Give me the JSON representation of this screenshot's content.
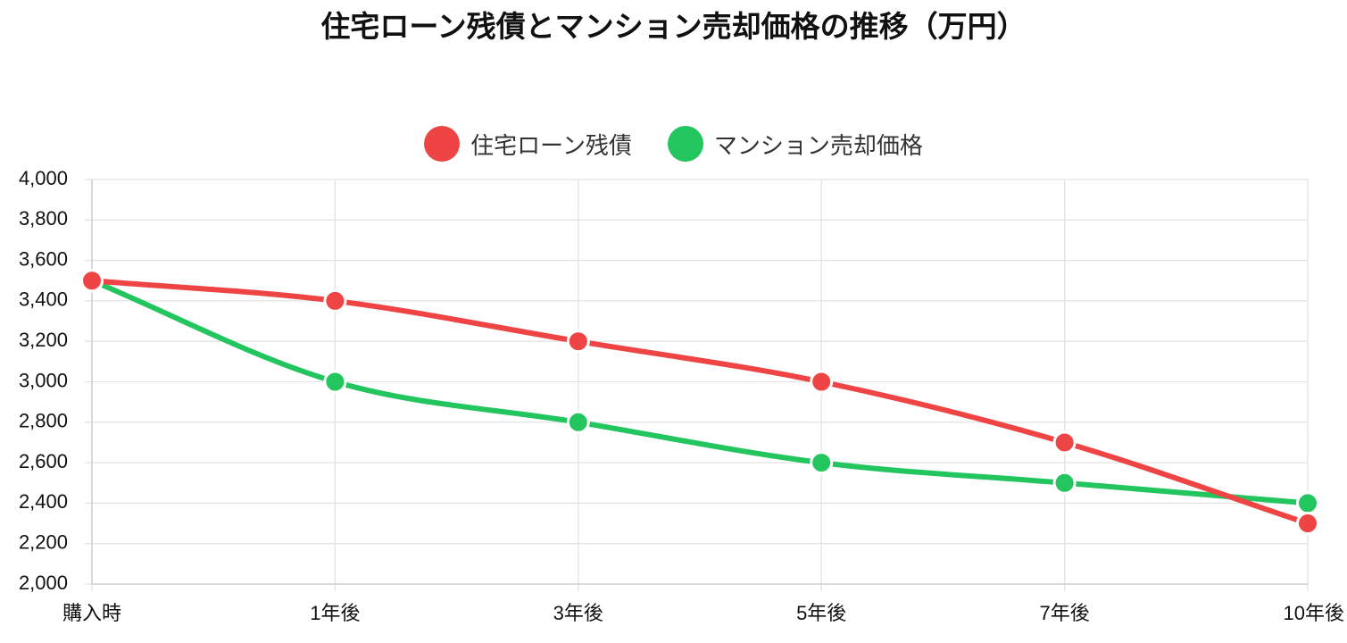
{
  "chart_data": {
    "type": "line",
    "title": "住宅ローン残債とマンション売却価格の推移（万円）",
    "categories": [
      "購入時",
      "1年後",
      "3年後",
      "5年後",
      "7年後",
      "10年後"
    ],
    "series": [
      {
        "name": "住宅ローン残債",
        "color": "#ef4444",
        "values": [
          3500,
          3400,
          3200,
          3000,
          2700,
          2300
        ]
      },
      {
        "name": "マンション売却価格",
        "color": "#22c55e",
        "values": [
          3500,
          3000,
          2800,
          2600,
          2500,
          2400
        ]
      }
    ],
    "ylim": [
      2000,
      4000
    ],
    "y_ticks": [
      2000,
      2200,
      2400,
      2600,
      2800,
      3000,
      3200,
      3400,
      3600,
      3800,
      4000
    ],
    "y_tick_labels": [
      "2,000",
      "2,200",
      "2,400",
      "2,600",
      "2,800",
      "3,000",
      "3,200",
      "3,400",
      "3,600",
      "3,800",
      "4,000"
    ],
    "grid": true,
    "legend_position": "top-center",
    "line_style": "smooth"
  }
}
